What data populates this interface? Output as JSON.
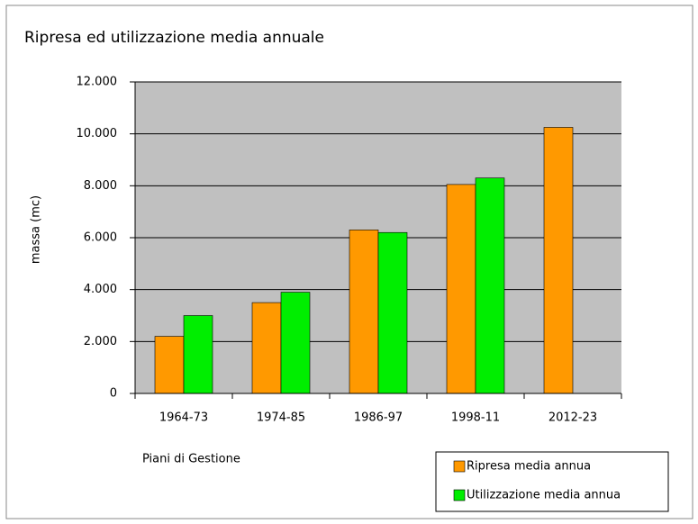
{
  "chart_data": {
    "type": "bar",
    "title": "Ripresa ed utilizzazione media annuale",
    "x_label": "Piani di Gestione",
    "y_label": "massa (mc)",
    "categories": [
      "1964-73",
      "1974-85",
      "1986-97",
      "1998-11",
      "2012-23"
    ],
    "series": [
      {
        "name": "Ripresa media annua",
        "color": "#ff9900",
        "values": [
          2200,
          3500,
          6300,
          8050,
          10250
        ]
      },
      {
        "name": "Utilizzazione media annua",
        "color": "#00ee00",
        "values": [
          3000,
          3900,
          6200,
          8300,
          null
        ]
      }
    ],
    "ylim": [
      0,
      12000
    ],
    "yticks": [
      0,
      {
        "value": 2000,
        "label": "2.000"
      },
      {
        "value": 4000,
        "label": "4.000"
      },
      {
        "value": 6000,
        "label": "6.000"
      },
      {
        "value": 8000,
        "label": "8.000"
      },
      {
        "value": 10000,
        "label": "10.000"
      },
      {
        "value": 12000,
        "label": "12.000"
      }
    ],
    "grid": true,
    "legend": "bottom-right"
  }
}
